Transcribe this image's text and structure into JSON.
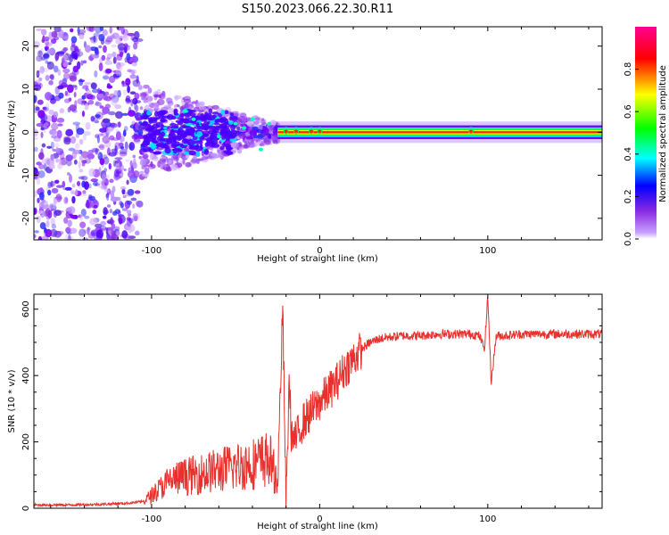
{
  "title": "S150.2023.066.22.30.R11",
  "chart_data": [
    {
      "type": "heatmap",
      "xlabel": "Height of straight line (km)",
      "ylabel": "Frequency (Hz)",
      "xlim": [
        -170,
        168
      ],
      "ylim": [
        -25,
        24.5
      ],
      "x_ticks": [
        -100,
        0,
        100
      ],
      "y_ticks": [
        -20,
        -10,
        0,
        10,
        20
      ],
      "colorbar": {
        "label": "Normalized spectral amplitude",
        "range": [
          0,
          1
        ],
        "ticks": [
          0.0,
          0.2,
          0.4,
          0.6,
          0.8
        ],
        "colormap": [
          "#ffffff",
          "#8a2be2",
          "#0000ff",
          "#00ffff",
          "#00ff00",
          "#ffff00",
          "#ff0000",
          "#ff00aa"
        ]
      },
      "regions": [
        {
          "x_range": [
            -170,
            -107
          ],
          "f_range": [
            -25,
            24.5
          ],
          "amplitude": 0.15,
          "pattern": "scattered noise"
        },
        {
          "x_range": [
            -107,
            -25
          ],
          "f_range": [
            -10,
            10
          ],
          "amplitude": 0.25,
          "pattern": "scattered noise narrowing toward zero"
        },
        {
          "x_range": [
            -25,
            168
          ],
          "f_center": 0,
          "f_halfwidth": 1.5,
          "amplitude": 0.95,
          "pattern": "coherent line at 0 Hz"
        }
      ]
    },
    {
      "type": "line",
      "xlabel": "Height of straight line (km)",
      "ylabel": "SNR (10 * v/v)",
      "xlim": [
        -170,
        168
      ],
      "ylim": [
        0,
        645
      ],
      "x_ticks": [
        -100,
        0,
        100
      ],
      "y_ticks": [
        0,
        200,
        400,
        600
      ],
      "color": "#e8302c",
      "series": [
        {
          "x": [
            -170,
            -150,
            -130,
            -115,
            -105,
            -100,
            -95,
            -90,
            -85,
            -80,
            -75,
            -70,
            -65,
            -60,
            -55,
            -50,
            -45,
            -40,
            -35,
            -30,
            -25,
            -22,
            -20,
            -18,
            -17,
            -15,
            -10,
            -5,
            0,
            5,
            10,
            15,
            20,
            25,
            30,
            35,
            40,
            50,
            60,
            70,
            80,
            90,
            95,
            98,
            100,
            102,
            105,
            110,
            120,
            130,
            140,
            150,
            160,
            168
          ],
          "y": [
            10,
            10,
            12,
            15,
            20,
            40,
            60,
            80,
            90,
            95,
            100,
            105,
            110,
            115,
            120,
            125,
            130,
            135,
            140,
            150,
            80,
            600,
            10,
            400,
            230,
            200,
            260,
            290,
            320,
            350,
            380,
            420,
            450,
            480,
            500,
            510,
            515,
            520,
            520,
            525,
            525,
            525,
            520,
            480,
            640,
            380,
            520,
            520,
            525,
            525,
            525,
            525,
            525,
            525
          ]
        }
      ]
    }
  ]
}
